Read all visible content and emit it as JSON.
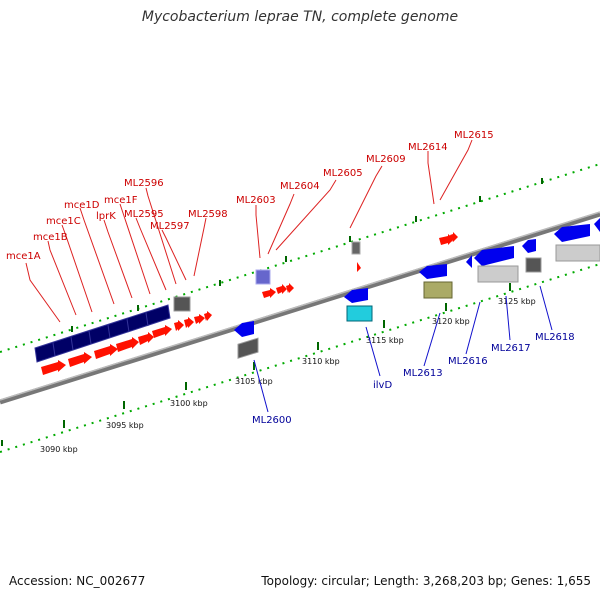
{
  "header": {
    "title": "Mycobacterium leprae TN, complete genome"
  },
  "footer": {
    "accession": "Accession: NC_002677",
    "topology": "Topology: circular; Length: 3,268,203 bp; Genes: 1,655"
  },
  "colors": {
    "backbone": "#888888",
    "forward_gene": "#ff0000",
    "reverse_gene": "#0000ff",
    "feature_navy": "#000066",
    "forward_label": "#cc0000",
    "reverse_label": "#000099",
    "tick_green": "#008800"
  },
  "scale_labels": [
    "3090 kbp",
    "3095 kbp",
    "3100 kbp",
    "3105 kbp",
    "3110 kbp",
    "3115 kbp",
    "3120 kbp",
    "3125 kbp"
  ],
  "forward_labels": [
    "mce1A",
    "mce1B",
    "mce1C",
    "mce1D",
    "lprK",
    "mce1F",
    "ML2595",
    "ML2596",
    "ML2597",
    "ML2598",
    "ML2603",
    "ML2604",
    "ML2605",
    "ML2609",
    "ML2614",
    "ML2615"
  ],
  "reverse_labels": [
    "ML2600",
    "ilvD",
    "ML2613",
    "ML2616",
    "ML2617",
    "ML2618"
  ]
}
